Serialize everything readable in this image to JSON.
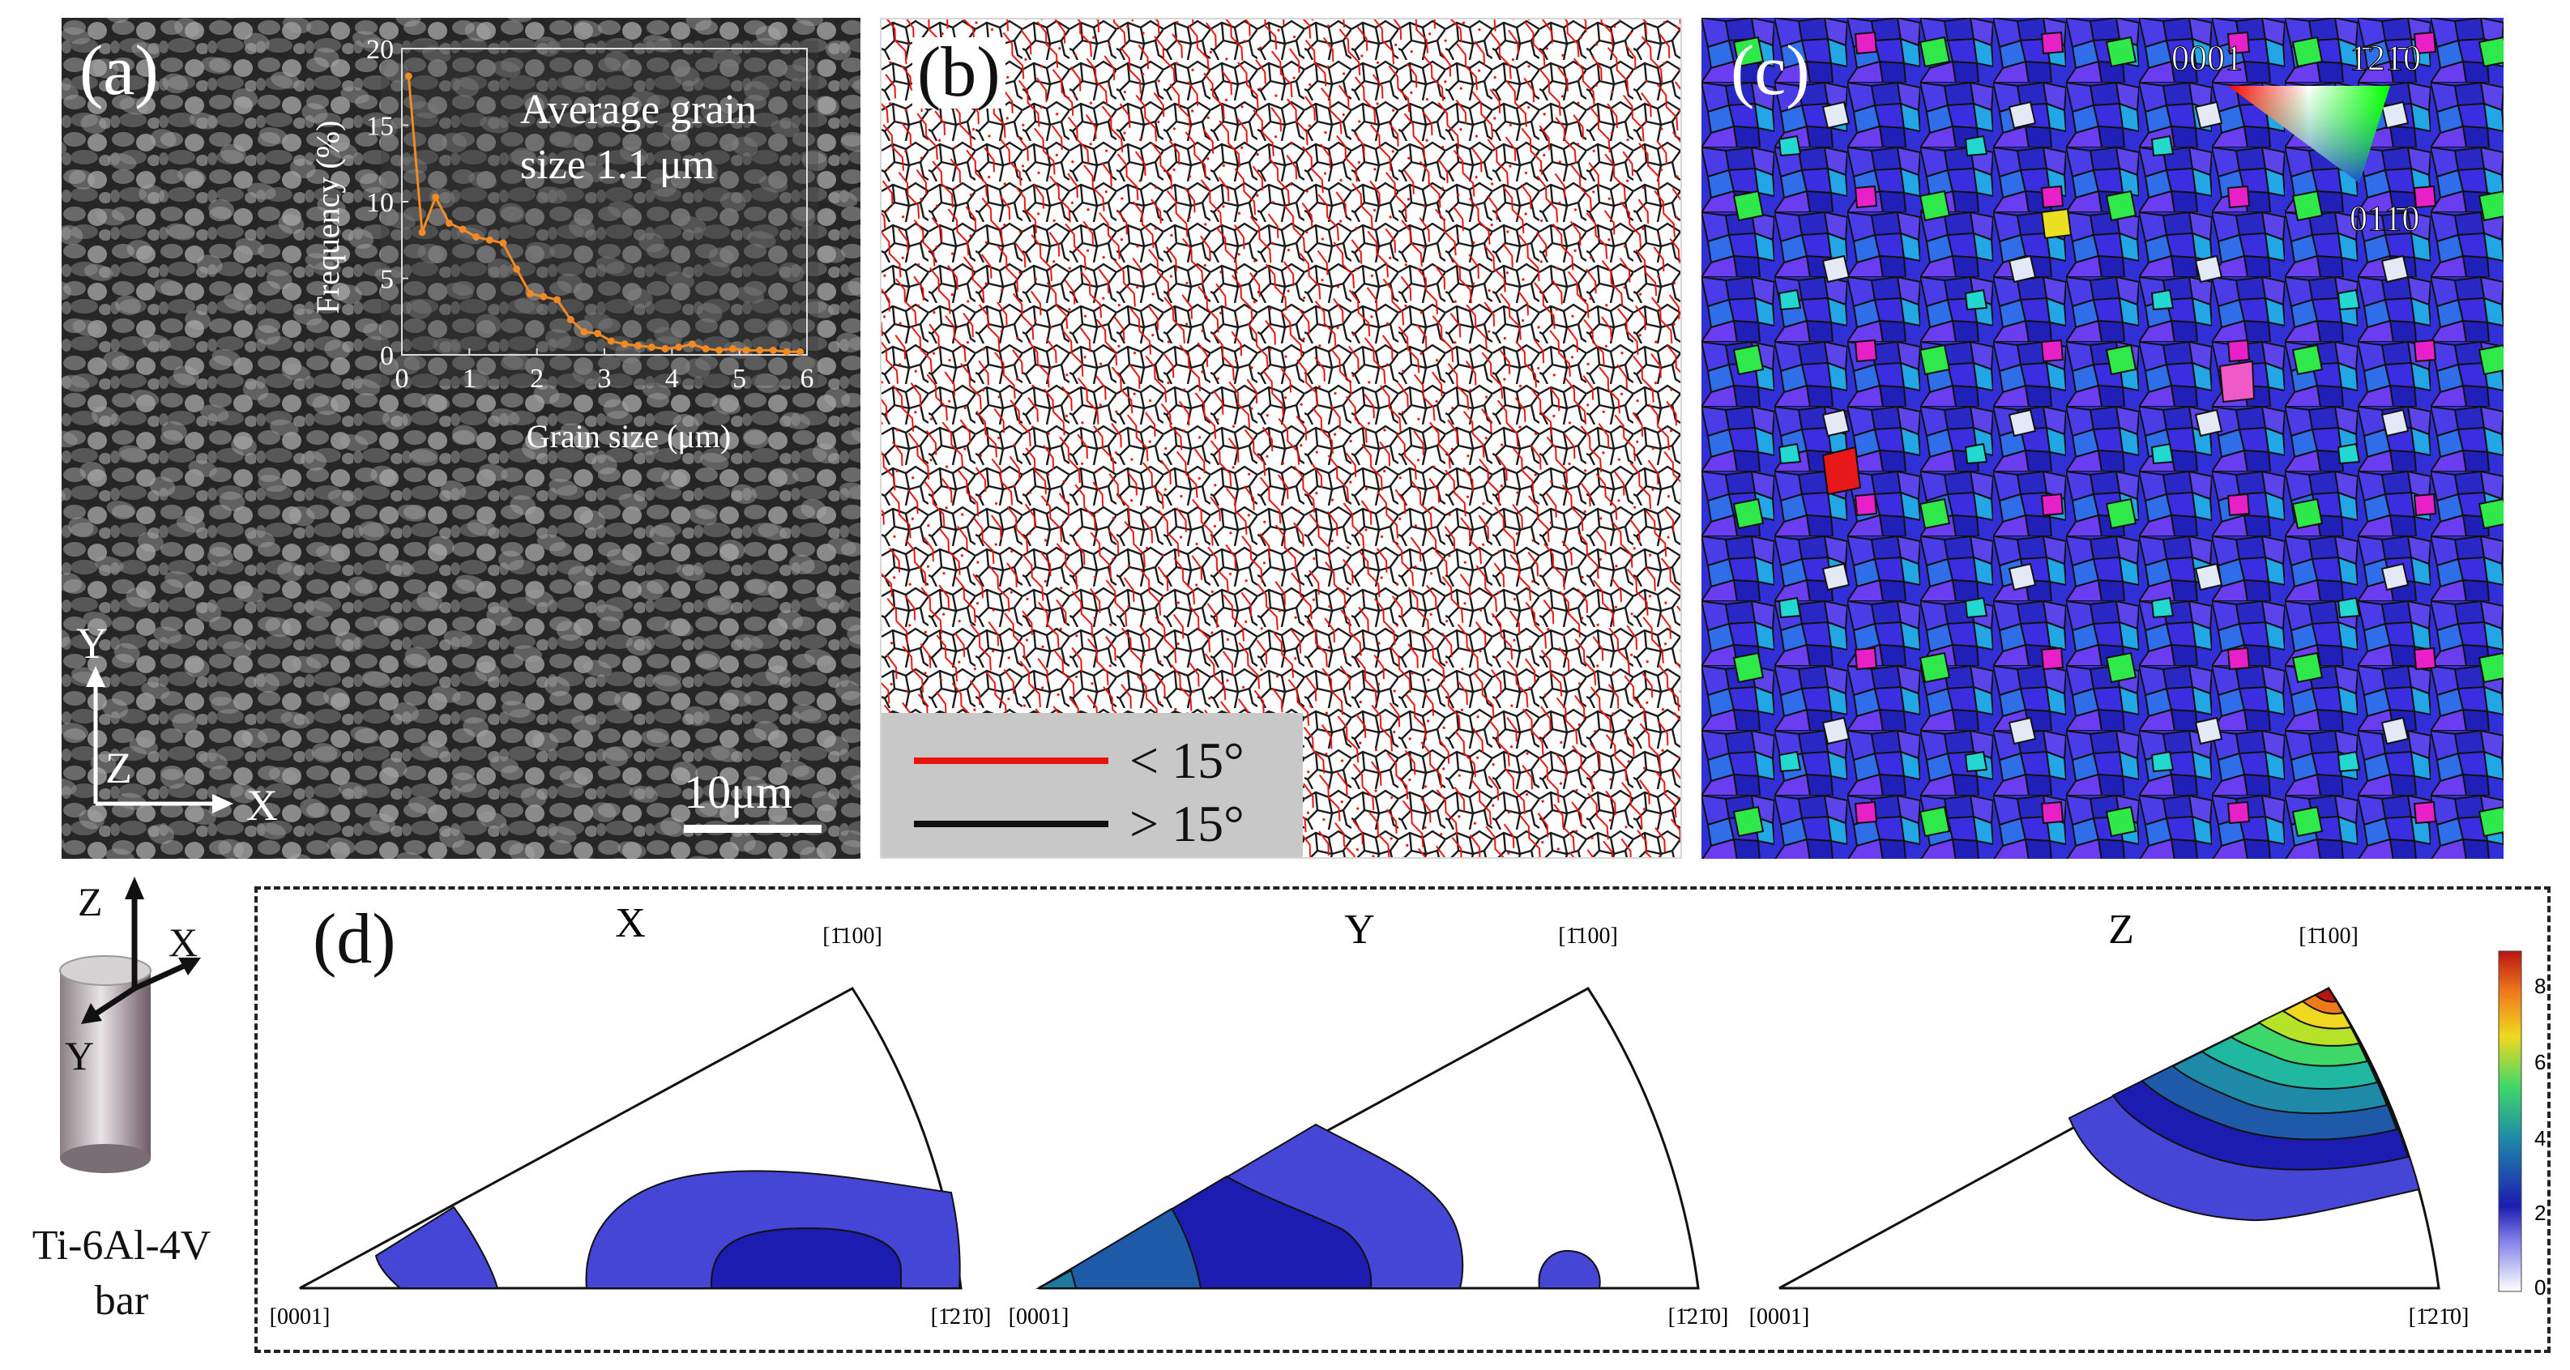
{
  "panel_a": {
    "label": "(a)",
    "scale_bar": "10μm",
    "axes": {
      "y": "Y",
      "z": "Z",
      "x": "X"
    },
    "inset": {
      "annotation_line1": "Average grain",
      "annotation_line2": "size 1.1 μm",
      "chart_data": {
        "type": "line",
        "xlabel": "Grain size (μm)",
        "ylabel": "Frequency (%)",
        "xlim": [
          0,
          6
        ],
        "ylim": [
          0,
          20
        ],
        "xticks": [
          "0",
          "1",
          "2",
          "3",
          "4",
          "5",
          "6"
        ],
        "yticks": [
          "0",
          "5",
          "10",
          "15",
          "20"
        ],
        "x": [
          0.1,
          0.3,
          0.5,
          0.7,
          0.9,
          1.1,
          1.3,
          1.5,
          1.7,
          1.9,
          2.1,
          2.3,
          2.5,
          2.7,
          2.9,
          3.1,
          3.3,
          3.5,
          3.7,
          3.9,
          4.1,
          4.3,
          4.5,
          4.7,
          4.9,
          5.1,
          5.3,
          5.5,
          5.7,
          5.9
        ],
        "y": [
          18.2,
          8.0,
          10.3,
          8.6,
          8.2,
          7.7,
          7.5,
          7.3,
          5.6,
          4.0,
          3.8,
          3.6,
          2.3,
          1.5,
          1.4,
          0.9,
          0.7,
          0.6,
          0.5,
          0.4,
          0.5,
          0.7,
          0.4,
          0.3,
          0.4,
          0.3,
          0.3,
          0.3,
          0.2,
          0.2
        ],
        "color": "#f08a24"
      }
    }
  },
  "panel_b": {
    "label": "(b)",
    "legend": [
      {
        "text": "< 15°",
        "color": "#e8140c"
      },
      {
        "text": "> 15°",
        "color": "#111111"
      }
    ]
  },
  "panel_c": {
    "label": "(c)",
    "ipf_key": {
      "top_left": "0001",
      "top_right": "1̄21̄0",
      "bottom": "011̄0"
    }
  },
  "side": {
    "axes": {
      "z": "Z",
      "x": "X",
      "y": "Y"
    },
    "sample_line1": "Ti-6Al-4V",
    "sample_line2": "bar"
  },
  "panel_d": {
    "label": "(d)",
    "figures": [
      {
        "title": "X",
        "apex": "[1̄100]",
        "left": "[0001]",
        "right": "[1̄21̄0]"
      },
      {
        "title": "Y",
        "apex": "[1̄100]",
        "left": "[0001]",
        "right": "[1̄21̄0]"
      },
      {
        "title": "Z",
        "apex": "[1̄100]",
        "left": "[0001]",
        "right": "[1̄21̄0]"
      }
    ],
    "colorbar": {
      "ticks": [
        "8",
        "6",
        "4",
        "2",
        "0"
      ],
      "min": 0,
      "max": 9
    }
  }
}
